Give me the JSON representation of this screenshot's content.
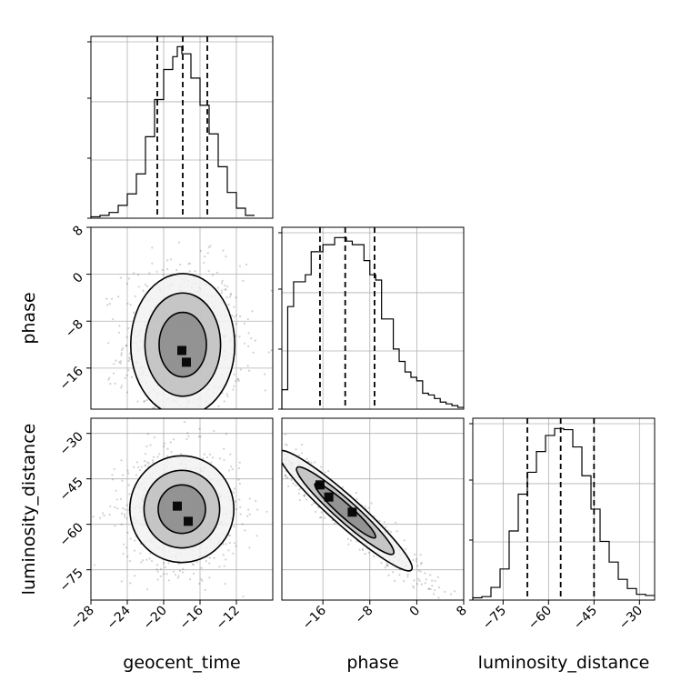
{
  "chart_data": {
    "type": "corner",
    "parameters": [
      "geocent_time",
      "phase",
      "luminosity_distance"
    ],
    "axis_labels": {
      "geocent_time": "geocent_time",
      "phase": "phase",
      "luminosity_distance": "luminosity_distance"
    },
    "ranges": {
      "geocent_time": [
        -28,
        -8
      ],
      "phase": [
        -23,
        8
      ],
      "luminosity_distance": [
        -85,
        -25
      ]
    },
    "ticks": {
      "geocent_time": [
        -28,
        -24,
        -20,
        -16,
        -12
      ],
      "phase": [
        -16,
        -8,
        0,
        8
      ],
      "phase_row": [
        -16,
        -8,
        0,
        8
      ],
      "luminosity_distance": [
        -75,
        -60,
        -45,
        -30
      ]
    },
    "quantiles": {
      "geocent_time": [
        -20.7,
        -17.9,
        -15.2
      ],
      "phase": [
        -16.5,
        -12.2,
        -7.2
      ],
      "luminosity_distance": [
        -67,
        -56,
        -45
      ]
    },
    "histograms": {
      "geocent_time": {
        "edges": [
          -28,
          -27,
          -26,
          -25,
          -24,
          -23,
          -22,
          -21,
          -20,
          -19,
          -18.5,
          -18,
          -17,
          -16,
          -15,
          -14,
          -13,
          -12,
          -11,
          -10
        ],
        "counts": [
          1,
          2,
          4,
          9,
          17,
          31,
          57,
          83,
          104,
          113,
          120,
          115,
          98,
          79,
          59,
          36,
          18,
          7,
          2
        ]
      },
      "phase": {
        "edges": [
          -23,
          -22,
          -21,
          -20,
          -19,
          -18,
          -17,
          -16,
          -15,
          -14,
          -13,
          -12,
          -11,
          -10,
          -9,
          -8,
          -7,
          -6,
          -5,
          -4,
          -3,
          -2,
          -1,
          0,
          1,
          2,
          3,
          4,
          5,
          6,
          7,
          8
        ],
        "counts": [
          11,
          58,
          72,
          72,
          76,
          89,
          89,
          93,
          93,
          97,
          97,
          95,
          93,
          93,
          84,
          76,
          73,
          51,
          51,
          34,
          27,
          21,
          18,
          16,
          9,
          8,
          6,
          4,
          3,
          2,
          1
        ]
      },
      "luminosity_distance": {
        "edges": [
          -85,
          -82,
          -79,
          -76,
          -73,
          -70,
          -67,
          -64,
          -61,
          -58,
          -55,
          -52,
          -49,
          -46,
          -43,
          -40,
          -37,
          -34,
          -31,
          -28,
          -25
        ],
        "counts": [
          2,
          3,
          11,
          27,
          60,
          92,
          111,
          129,
          143,
          149,
          148,
          133,
          108,
          79,
          51,
          33,
          18,
          10,
          5,
          4
        ]
      }
    },
    "contours_2d": [
      {
        "x": "geocent_time",
        "y": "phase",
        "center": [
          -17.9,
          -12
        ],
        "sigma": [
          2.6,
          5.5
        ],
        "levels": [
          1.0,
          1.6,
          2.2
        ],
        "hot_spots": [
          [
            -18,
            -13
          ],
          [
            -17.5,
            -15
          ]
        ]
      },
      {
        "x": "geocent_time",
        "y": "luminosity_distance",
        "center": [
          -18,
          -55
        ],
        "sigma": [
          2.6,
          8.0
        ],
        "levels": [
          1.0,
          1.6,
          2.2
        ],
        "hot_spots": [
          [
            -18.5,
            -54
          ],
          [
            -17.3,
            -59
          ]
        ]
      },
      {
        "x": "phase",
        "y": "luminosity_distance",
        "center": [
          -12.2,
          -55.5
        ],
        "sigma": [
          5.2,
          9.0
        ],
        "correlation": -0.95,
        "levels": [
          1.0,
          1.6,
          2.2
        ],
        "hot_spots": [
          [
            -16.5,
            -47
          ],
          [
            -15,
            -51
          ],
          [
            -11,
            -56
          ]
        ]
      }
    ]
  }
}
